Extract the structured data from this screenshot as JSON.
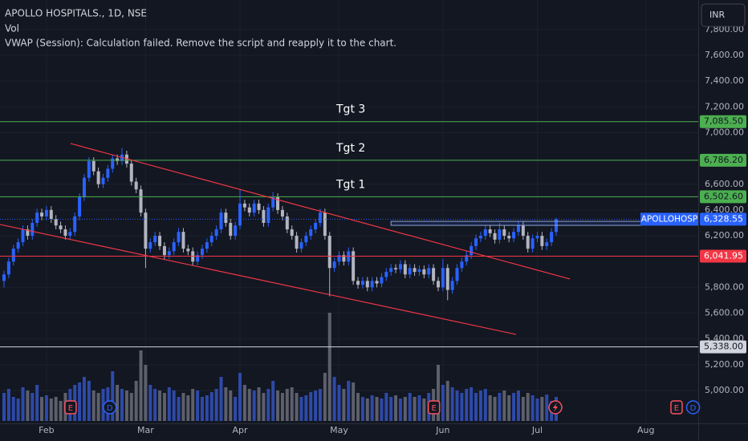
{
  "header": {
    "title": "APOLLO HOSPITALS., 1D, NSE",
    "line2": "Vol",
    "line3": "VWAP (Session): Calculation failed. Remove the script and reapply it to the chart.",
    "currency": "INR"
  },
  "chart_data": {
    "type": "candlestick",
    "up_color": "#2962ff",
    "down_color": "#b2b5be",
    "volume_up_color": "#2e4aa8",
    "volume_down_color": "#5d606b",
    "xlim": [
      -0.85,
      147.1
    ],
    "ylim": [
      4745,
      8029
    ],
    "volume_lim": [
      0,
      150
    ],
    "yticks": [
      {
        "value": 7800,
        "label": "7,800.00"
      },
      {
        "value": 7600,
        "label": "7,600.00"
      },
      {
        "value": 7400,
        "label": "7,400.00"
      },
      {
        "value": 7200,
        "label": "7,200.00"
      },
      {
        "value": 7000,
        "label": "7,000.00"
      },
      {
        "value": 6600,
        "label": "6,600.00"
      },
      {
        "value": 6400,
        "label": "6,400.00"
      },
      {
        "value": 6200,
        "label": "6,200.00"
      },
      {
        "value": 5800,
        "label": "5,800.00"
      },
      {
        "value": 5600,
        "label": "5,600.00"
      },
      {
        "value": 5400,
        "label": "5,400.00"
      },
      {
        "value": 5200,
        "label": "5,200.00"
      },
      {
        "value": 5000,
        "label": "5,000.00"
      }
    ],
    "xticks": [
      {
        "value": 9,
        "label": "Feb"
      },
      {
        "value": 30,
        "label": "Mar"
      },
      {
        "value": 50,
        "label": "Apr"
      },
      {
        "value": 71,
        "label": "May"
      },
      {
        "value": 93,
        "label": "Jun"
      },
      {
        "value": 113,
        "label": "Jul"
      },
      {
        "value": 136,
        "label": "Aug"
      }
    ],
    "open": [
      5850,
      5900,
      6000,
      6100,
      6150,
      6250,
      6200,
      6300,
      6380,
      6350,
      6400,
      6330,
      6280,
      6250,
      6200,
      6230,
      6350,
      6500,
      6650,
      6780,
      6700,
      6600,
      6650,
      6720,
      6800,
      6780,
      6830,
      6760,
      6620,
      6560,
      6380,
      6100,
      6150,
      6200,
      6120,
      6050,
      6080,
      6150,
      6230,
      6100,
      6080,
      6000,
      6050,
      6100,
      6150,
      6200,
      6250,
      6380,
      6300,
      6200,
      6280,
      6450,
      6420,
      6380,
      6450,
      6400,
      6300,
      6420,
      6500,
      6400,
      6350,
      6250,
      6200,
      6100,
      6150,
      6200,
      6250,
      6300,
      6380,
      6200,
      5950,
      6000,
      6050,
      6000,
      6080,
      5850,
      5820,
      5850,
      5800,
      5850,
      5830,
      5880,
      5920,
      5950,
      5940,
      5980,
      5900,
      5950,
      5920,
      5940,
      5900,
      5950,
      5850,
      5800,
      5950,
      5780,
      5850,
      5950,
      6000,
      6050,
      6120,
      6180,
      6200,
      6250,
      6220,
      6170,
      6250,
      6200,
      6180,
      6230,
      6280,
      6200,
      6100,
      6180,
      6200,
      6120,
      6150,
      6230
    ],
    "high": [
      5930,
      6030,
      6130,
      6180,
      6280,
      6280,
      6330,
      6410,
      6410,
      6430,
      6430,
      6360,
      6310,
      6280,
      6260,
      6380,
      6530,
      6680,
      6810,
      6810,
      6730,
      6680,
      6750,
      6830,
      6830,
      6880,
      6860,
      6790,
      6650,
      6590,
      6410,
      6180,
      6230,
      6230,
      6150,
      6110,
      6180,
      6260,
      6260,
      6130,
      6110,
      6080,
      6130,
      6180,
      6230,
      6280,
      6410,
      6410,
      6330,
      6310,
      6560,
      6480,
      6450,
      6480,
      6480,
      6430,
      6450,
      6540,
      6530,
      6430,
      6380,
      6280,
      6230,
      6180,
      6230,
      6280,
      6330,
      6410,
      6410,
      6230,
      6030,
      6080,
      6080,
      6110,
      6110,
      5880,
      5880,
      5880,
      5880,
      5880,
      5910,
      5950,
      5980,
      5980,
      6010,
      6010,
      5980,
      5980,
      5970,
      5970,
      5980,
      5980,
      5880,
      6020,
      5980,
      5880,
      5980,
      6030,
      6080,
      6150,
      6210,
      6230,
      6280,
      6280,
      6250,
      6300,
      6280,
      6230,
      6260,
      6310,
      6310,
      6230,
      6210,
      6230,
      6230,
      6180,
      6260,
      6340
    ],
    "low": [
      5800,
      5870,
      5970,
      6070,
      6120,
      6170,
      6170,
      6270,
      6320,
      6320,
      6300,
      6250,
      6220,
      6170,
      6170,
      6200,
      6320,
      6470,
      6620,
      6670,
      6570,
      6570,
      6620,
      6690,
      6750,
      6750,
      6730,
      6590,
      6530,
      6350,
      5950,
      6070,
      6120,
      6090,
      6020,
      6020,
      6050,
      6120,
      6070,
      6050,
      5970,
      5970,
      6020,
      6070,
      6120,
      6170,
      6220,
      6270,
      6170,
      6170,
      6250,
      6390,
      6350,
      6350,
      6370,
      6270,
      6270,
      6390,
      6370,
      6320,
      6220,
      6170,
      6070,
      6070,
      6120,
      6170,
      6220,
      6270,
      6170,
      5730,
      5920,
      5970,
      5970,
      5970,
      5820,
      5790,
      5790,
      5770,
      5770,
      5800,
      5800,
      5850,
      5890,
      5910,
      5910,
      5870,
      5870,
      5890,
      5890,
      5870,
      5870,
      5820,
      5770,
      5770,
      5700,
      5750,
      5820,
      5920,
      5970,
      6020,
      6090,
      6150,
      6170,
      6190,
      6140,
      6140,
      6170,
      6150,
      6150,
      6200,
      6170,
      6070,
      6070,
      6150,
      6090,
      6090,
      6120,
      6200
    ],
    "close": [
      5900,
      6000,
      6100,
      6150,
      6250,
      6200,
      6300,
      6380,
      6350,
      6400,
      6330,
      6280,
      6250,
      6200,
      6230,
      6350,
      6500,
      6650,
      6780,
      6700,
      6600,
      6650,
      6720,
      6800,
      6780,
      6830,
      6760,
      6620,
      6560,
      6380,
      6100,
      6150,
      6200,
      6120,
      6050,
      6080,
      6150,
      6230,
      6100,
      6080,
      6000,
      6050,
      6100,
      6150,
      6200,
      6250,
      6380,
      6300,
      6200,
      6280,
      6450,
      6420,
      6380,
      6450,
      6400,
      6300,
      6420,
      6500,
      6400,
      6350,
      6250,
      6200,
      6100,
      6150,
      6200,
      6250,
      6300,
      6380,
      6200,
      5950,
      6000,
      6050,
      6000,
      6080,
      5850,
      5820,
      5850,
      5800,
      5850,
      5830,
      5880,
      5920,
      5950,
      5940,
      5980,
      5900,
      5950,
      5920,
      5940,
      5900,
      5950,
      5850,
      5800,
      5950,
      5780,
      5850,
      5950,
      6000,
      6050,
      6120,
      6180,
      6200,
      6250,
      6220,
      6170,
      6250,
      6200,
      6180,
      6230,
      6280,
      6200,
      6100,
      6180,
      6200,
      6120,
      6150,
      6230,
      6328.55
    ],
    "volume": [
      35,
      40,
      30,
      28,
      42,
      38,
      35,
      45,
      30,
      32,
      28,
      30,
      25,
      35,
      40,
      45,
      48,
      55,
      50,
      38,
      35,
      40,
      42,
      62,
      45,
      40,
      38,
      35,
      50,
      88,
      70,
      45,
      40,
      38,
      35,
      42,
      38,
      30,
      35,
      32,
      40,
      38,
      30,
      32,
      36,
      40,
      55,
      42,
      38,
      30,
      60,
      45,
      40,
      38,
      42,
      35,
      40,
      50,
      38,
      35,
      40,
      42,
      35,
      30,
      32,
      36,
      38,
      40,
      60,
      135,
      55,
      45,
      40,
      50,
      48,
      35,
      30,
      28,
      32,
      30,
      28,
      35,
      30,
      32,
      28,
      30,
      35,
      30,
      32,
      28,
      35,
      40,
      70,
      45,
      50,
      42,
      38,
      35,
      40,
      42,
      35,
      38,
      40,
      32,
      30,
      35,
      38,
      32,
      35,
      38,
      30,
      35,
      32,
      28,
      30,
      33,
      25,
      30
    ],
    "levels": [
      {
        "value": 7085.5,
        "label": "7,085.50",
        "color": "#4caf50",
        "note": "Tgt 3"
      },
      {
        "value": 6786.2,
        "label": "6,786.20",
        "color": "#4caf50",
        "note": "Tgt 2"
      },
      {
        "value": 6502.6,
        "label": "6,502.60",
        "color": "#4caf50",
        "note": "Tgt 1"
      },
      {
        "value": 6041.95,
        "label": "6,041.95",
        "color": "#f23645"
      },
      {
        "value": 5338,
        "label": "5,338.00",
        "color": "#d1d4dc"
      }
    ],
    "trendlines": [
      {
        "color": "#f23645",
        "from": [
          14.1,
          6916
        ],
        "to": [
          119.9,
          5865
        ]
      },
      {
        "color": "#f23645",
        "from": [
          -0.85,
          6288
        ],
        "to": [
          108.5,
          5435
        ]
      }
    ],
    "zone": {
      "from": 82.0,
      "to": 135.2,
      "low": 6281,
      "high": 6312
    },
    "last_price": {
      "symbol": "APOLLOHOSP",
      "value": 6328.55,
      "label": "6,328.55"
    },
    "events": [
      {
        "index": 14.1,
        "label": "E"
      },
      {
        "index": 22.4,
        "label": "D"
      },
      {
        "index": 91.1,
        "label": "E"
      },
      {
        "index": 142.5,
        "label": "E"
      },
      {
        "index": 146,
        "label": "D"
      }
    ]
  }
}
